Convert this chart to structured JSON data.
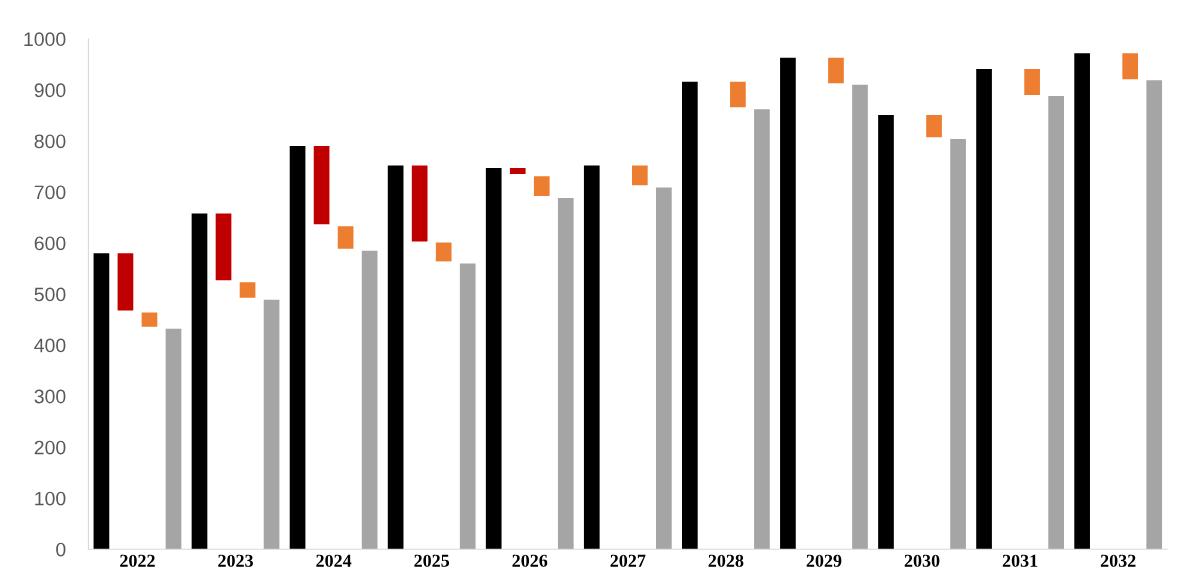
{
  "chart_data": {
    "type": "bar",
    "categories": [
      "2022",
      "2023",
      "2024",
      "2025",
      "2026",
      "2027",
      "2028",
      "2029",
      "2030",
      "2031",
      "2032"
    ],
    "series": [
      {
        "color": "#000000",
        "values": [
          580,
          658,
          790,
          752,
          747,
          752,
          916,
          963,
          851,
          941,
          972
        ]
      },
      {
        "color": "#c00000",
        "base": [
          468,
          527,
          637,
          603,
          735,
          null,
          null,
          null,
          null,
          null,
          null
        ],
        "values": [
          112,
          131,
          153,
          149,
          12,
          null,
          null,
          null,
          null,
          null,
          null
        ]
      },
      {
        "color": "#ed7d31",
        "base": [
          436,
          493,
          589,
          564,
          692,
          713,
          866,
          913,
          807,
          890,
          921
        ],
        "values": [
          28,
          30,
          44,
          37,
          39,
          39,
          50,
          50,
          44,
          51,
          51
        ]
      },
      {
        "color": "#a5a5a5",
        "values": [
          432,
          489,
          585,
          560,
          688,
          709,
          862,
          910,
          804,
          888,
          919
        ]
      }
    ],
    "ylim": [
      0,
      1000
    ],
    "yticks": [
      0,
      100,
      200,
      300,
      400,
      500,
      600,
      700,
      800,
      900,
      1000
    ],
    "grid": false
  }
}
